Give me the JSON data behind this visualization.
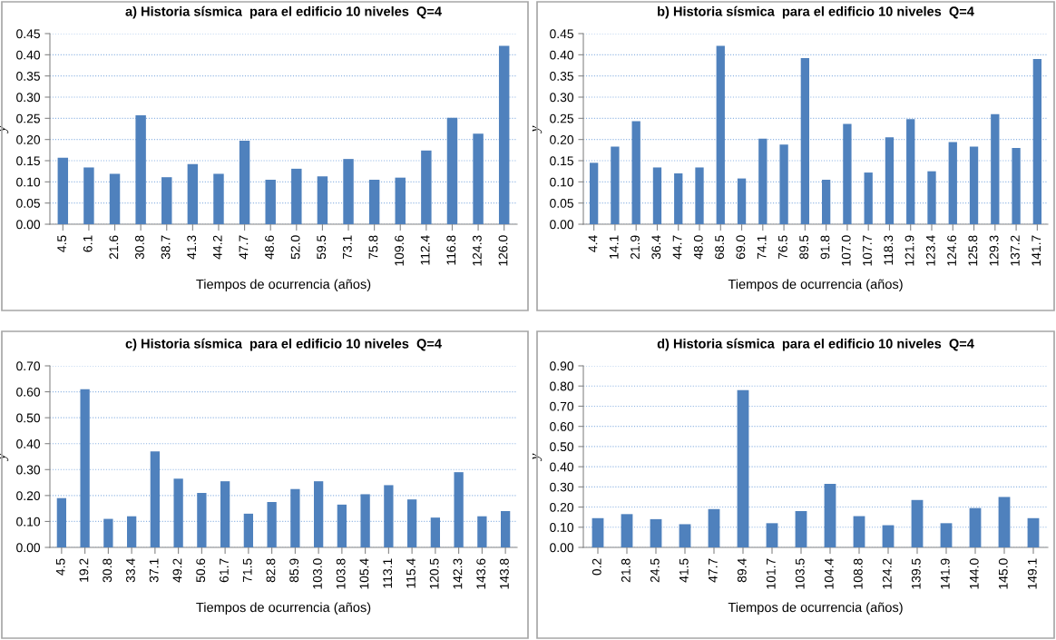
{
  "chart_data": [
    {
      "type": "bar",
      "title": "a) Historia sísmica  para el edificio 10 niveles  Q=4",
      "xlabel": "Tiempos de ocurrencia (años)",
      "ylabel": "y",
      "grid": "y",
      "color": "#4f81bd",
      "categories": [
        "4.5",
        "6.1",
        "21.6",
        "30.8",
        "38.7",
        "41.3",
        "44.2",
        "47.7",
        "48.6",
        "52.0",
        "59.5",
        "73.1",
        "75.8",
        "109.6",
        "112.4",
        "116.8",
        "124.3",
        "126.0"
      ],
      "values": [
        0.157,
        0.134,
        0.119,
        0.257,
        0.111,
        0.142,
        0.119,
        0.197,
        0.105,
        0.131,
        0.113,
        0.154,
        0.105,
        0.11,
        0.174,
        0.251,
        0.214,
        0.421
      ],
      "ylim": [
        0,
        0.45
      ],
      "yticks": [
        {
          "value": 0,
          "label": "0.00"
        },
        {
          "value": 0.05,
          "label": "0.05"
        },
        {
          "value": 0.1,
          "label": "0.10"
        },
        {
          "value": 0.15,
          "label": "0.15"
        },
        {
          "value": 0.2,
          "label": "0.20"
        },
        {
          "value": 0.25,
          "label": "0.25"
        },
        {
          "value": 0.3,
          "label": "0.30"
        },
        {
          "value": 0.35,
          "label": "0.35"
        },
        {
          "value": 0.4,
          "label": "0.40"
        },
        {
          "value": 0.45,
          "label": "0.45"
        }
      ]
    },
    {
      "type": "bar",
      "title": "b) Historia sísmica  para el edificio 10 niveles  Q=4",
      "xlabel": "Tiempos de ocurrencia (años)",
      "ylabel": "y",
      "grid": "y",
      "color": "#4f81bd",
      "categories": [
        "4.4",
        "14.1",
        "21.9",
        "36.4",
        "44.7",
        "48.0",
        "68.5",
        "69.0",
        "74.1",
        "76.5",
        "89.5",
        "91.8",
        "107.0",
        "107.7",
        "118.3",
        "121.9",
        "123.4",
        "124.6",
        "125.8",
        "129.3",
        "137.2",
        "141.7"
      ],
      "values": [
        0.145,
        0.183,
        0.243,
        0.134,
        0.12,
        0.134,
        0.421,
        0.108,
        0.202,
        0.188,
        0.392,
        0.105,
        0.237,
        0.122,
        0.205,
        0.248,
        0.125,
        0.194,
        0.183,
        0.26,
        0.18,
        0.39
      ],
      "ylim": [
        0,
        0.45
      ],
      "yticks": [
        {
          "value": 0,
          "label": "0.00"
        },
        {
          "value": 0.05,
          "label": "0.05"
        },
        {
          "value": 0.1,
          "label": "0.10"
        },
        {
          "value": 0.15,
          "label": "0.15"
        },
        {
          "value": 0.2,
          "label": "0.20"
        },
        {
          "value": 0.25,
          "label": "0.25"
        },
        {
          "value": 0.3,
          "label": "0.30"
        },
        {
          "value": 0.35,
          "label": "0.35"
        },
        {
          "value": 0.4,
          "label": "0.40"
        },
        {
          "value": 0.45,
          "label": "0.45"
        }
      ]
    },
    {
      "type": "bar",
      "title": "c) Historia sísmica  para el edificio 10 niveles  Q=4",
      "xlabel": "Tiempos de ocurrencia (años)",
      "ylabel": "y",
      "grid": "y",
      "color": "#4f81bd",
      "categories": [
        "4.5",
        "19.2",
        "30.8",
        "33.4",
        "37.1",
        "49.2",
        "50.6",
        "61.7",
        "71.5",
        "82.8",
        "85.9",
        "103.0",
        "103.8",
        "105.4",
        "113.1",
        "115.4",
        "120.5",
        "142.3",
        "143.6",
        "143.8"
      ],
      "values": [
        0.19,
        0.61,
        0.11,
        0.12,
        0.37,
        0.265,
        0.21,
        0.255,
        0.13,
        0.175,
        0.225,
        0.255,
        0.165,
        0.205,
        0.24,
        0.185,
        0.115,
        0.29,
        0.12,
        0.14
      ],
      "ylim": [
        0,
        0.7
      ],
      "yticks": [
        {
          "value": 0,
          "label": "0.00"
        },
        {
          "value": 0.1,
          "label": "0.10"
        },
        {
          "value": 0.2,
          "label": "0.20"
        },
        {
          "value": 0.3,
          "label": "0.30"
        },
        {
          "value": 0.4,
          "label": "0.40"
        },
        {
          "value": 0.5,
          "label": "0.50"
        },
        {
          "value": 0.6,
          "label": "0.60"
        },
        {
          "value": 0.7,
          "label": "0.70"
        }
      ]
    },
    {
      "type": "bar",
      "title": "d) Historia sísmica  para el edificio 10 niveles  Q=4",
      "xlabel": "Tiempos de ocurrencia (años)",
      "ylabel": "y",
      "grid": "y",
      "color": "#4f81bd",
      "categories": [
        "0.2",
        "21.8",
        "24.5",
        "41.5",
        "47.7",
        "89.4",
        "101.7",
        "103.5",
        "104.4",
        "108.8",
        "124.2",
        "139.5",
        "141.9",
        "144.0",
        "145.0",
        "149.1"
      ],
      "values": [
        0.145,
        0.165,
        0.14,
        0.115,
        0.19,
        0.78,
        0.12,
        0.18,
        0.315,
        0.155,
        0.11,
        0.235,
        0.12,
        0.195,
        0.25,
        0.145
      ],
      "ylim": [
        0,
        0.9
      ],
      "yticks": [
        {
          "value": 0,
          "label": "0.00"
        },
        {
          "value": 0.1,
          "label": "0.10"
        },
        {
          "value": 0.2,
          "label": "0.20"
        },
        {
          "value": 0.3,
          "label": "0.30"
        },
        {
          "value": 0.4,
          "label": "0.40"
        },
        {
          "value": 0.5,
          "label": "0.50"
        },
        {
          "value": 0.6,
          "label": "0.60"
        },
        {
          "value": 0.7,
          "label": "0.70"
        },
        {
          "value": 0.8,
          "label": "0.80"
        },
        {
          "value": 0.9,
          "label": "0.90"
        }
      ]
    }
  ]
}
